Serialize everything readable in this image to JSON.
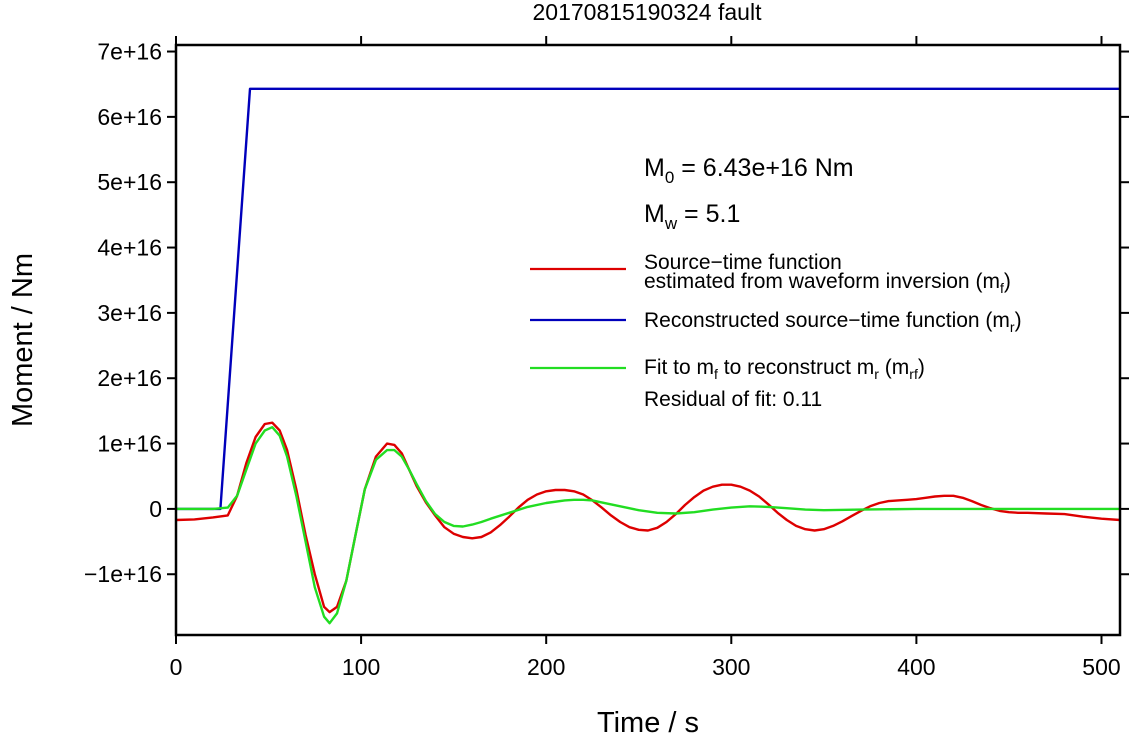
{
  "chart_data": {
    "type": "line",
    "title": "20170815190324 fault",
    "xlabel": "Time / s",
    "ylabel": "Moment / Nm",
    "xlim": [
      0,
      510
    ],
    "ylim": [
      -1.93e+16,
      7.1e+16
    ],
    "x_ticks": [
      0,
      100,
      200,
      300,
      400,
      500
    ],
    "x_tick_labels": [
      "0",
      "100",
      "200",
      "300",
      "400",
      "500"
    ],
    "y_ticks": [
      -1e+16,
      0,
      1e+16,
      2e+16,
      3e+16,
      4e+16,
      5e+16,
      6e+16,
      7e+16
    ],
    "y_tick_labels": [
      "−1e+16",
      "0",
      "1e+16",
      "2e+16",
      "3e+16",
      "4e+16",
      "5e+16",
      "6e+16",
      "7e+16"
    ],
    "grid": false,
    "legend_position": "right",
    "annotations": {
      "m0_prefix": "M",
      "m0_sub": "0",
      "m0_rest": " = 6.43e+16 Nm",
      "mw_prefix": "M",
      "mw_sub": "w",
      "mw_rest": " = 5.1",
      "residual": "Residual of fit: 0.11"
    },
    "legend": [
      {
        "color": "#dd0000",
        "line1": "Source−time function",
        "line2_main": "estimated from waveform inversion (m",
        "line2_sub": "f",
        "line2_end": ")"
      },
      {
        "color": "#0000bb",
        "line1_main": "Reconstructed source−time function (m",
        "line1_sub": "r",
        "line1_end": ")"
      },
      {
        "color": "#22dd22",
        "p1": "Fit to m",
        "s1": "f",
        "p2": " to reconstruct m",
        "s2": "r",
        "p3": " (m",
        "s3": "rf",
        "p4": ")"
      }
    ],
    "series": [
      {
        "color": "#0000bb",
        "x": [
          0,
          24,
          40,
          510
        ],
        "y": [
          0,
          0,
          6.43e+16,
          6.43e+16
        ]
      },
      {
        "color": "#dd0000",
        "x": [
          0,
          10,
          20,
          28,
          33,
          38,
          43,
          48,
          52,
          56,
          60,
          65,
          70,
          75,
          80,
          83,
          87,
          92,
          97,
          102,
          108,
          114,
          118,
          122,
          126,
          130,
          135,
          140,
          145,
          150,
          155,
          160,
          165,
          170,
          175,
          180,
          185,
          190,
          195,
          200,
          205,
          210,
          215,
          220,
          225,
          230,
          235,
          240,
          245,
          250,
          255,
          260,
          265,
          270,
          275,
          280,
          285,
          290,
          295,
          300,
          305,
          310,
          315,
          320,
          325,
          330,
          335,
          340,
          345,
          350,
          355,
          360,
          365,
          370,
          375,
          380,
          385,
          390,
          395,
          400,
          405,
          410,
          415,
          420,
          425,
          430,
          435,
          440,
          445,
          450,
          455,
          460,
          470,
          480,
          490,
          500,
          510
        ],
        "y": [
          -1700000000000000.0,
          -1600000000000000.0,
          -1300000000000000.0,
          -1000000000000000.0,
          2000000000000000.0,
          7000000000000000.0,
          1.1e+16,
          1.3e+16,
          1.32e+16,
          1.2e+16,
          9000000000000000.0,
          3000000000000000.0,
          -4000000000000000.0,
          -1e+16,
          -1.5e+16,
          -1.58e+16,
          -1.5e+16,
          -1.1e+16,
          -4000000000000000.0,
          3000000000000000.0,
          8000000000000000.0,
          1e+16,
          9800000000000000.0,
          8500000000000000.0,
          6000000000000000.0,
          3500000000000000.0,
          1000000000000000.0,
          -1000000000000000.0,
          -2800000000000000.0,
          -3800000000000000.0,
          -4300000000000000.0,
          -4500000000000000.0,
          -4300000000000000.0,
          -3600000000000000.0,
          -2500000000000000.0,
          -1200000000000000.0,
          200000000000000.0,
          1400000000000000.0,
          2200000000000000.0,
          2700000000000000.0,
          2900000000000000.0,
          2900000000000000.0,
          2700000000000000.0,
          2200000000000000.0,
          1300000000000000.0,
          200000000000000.0,
          -1000000000000000.0,
          -2000000000000000.0,
          -2800000000000000.0,
          -3200000000000000.0,
          -3300000000000000.0,
          -2900000000000000.0,
          -2000000000000000.0,
          -800000000000000.0,
          600000000000000.0,
          1800000000000000.0,
          2800000000000000.0,
          3400000000000000.0,
          3700000000000000.0,
          3700000000000000.0,
          3400000000000000.0,
          2800000000000000.0,
          1900000000000000.0,
          700000000000000.0,
          -600000000000000.0,
          -1700000000000000.0,
          -2600000000000000.0,
          -3100000000000000.0,
          -3300000000000000.0,
          -3100000000000000.0,
          -2600000000000000.0,
          -1900000000000000.0,
          -1100000000000000.0,
          -300000000000000.0,
          400000000000000.0,
          900000000000000.0,
          1200000000000000.0,
          1300000000000000.0,
          1400000000000000.0,
          1500000000000000.0,
          1700000000000000.0,
          1900000000000000.0,
          2000000000000000.0,
          2000000000000000.0,
          1700000000000000.0,
          1200000000000000.0,
          600000000000000.0,
          100000000000000.0,
          -300000000000000.0,
          -500000000000000.0,
          -600000000000000.0,
          -600000000000000.0,
          -700000000000000.0,
          -800000000000000.0,
          -1200000000000000.0,
          -1500000000000000.0,
          -1700000000000000.0
        ]
      },
      {
        "color": "#22dd22",
        "x": [
          0,
          20,
          28,
          33,
          38,
          43,
          48,
          52,
          56,
          60,
          65,
          70,
          75,
          80,
          83,
          87,
          92,
          97,
          102,
          108,
          114,
          118,
          122,
          126,
          130,
          135,
          140,
          145,
          150,
          155,
          160,
          165,
          170,
          180,
          190,
          200,
          210,
          215,
          220,
          225,
          230,
          240,
          250,
          260,
          270,
          280,
          290,
          300,
          310,
          320,
          330,
          340,
          350,
          370,
          400,
          450,
          510
        ],
        "y": [
          0,
          0,
          200000000000000.0,
          2000000000000000.0,
          6000000000000000.0,
          1e+16,
          1.2e+16,
          1.25e+16,
          1.12e+16,
          8000000000000000.0,
          2000000000000000.0,
          -5000000000000000.0,
          -1.2e+16,
          -1.65e+16,
          -1.75e+16,
          -1.6e+16,
          -1.1e+16,
          -4000000000000000.0,
          3000000000000000.0,
          7500000000000000.0,
          9000000000000000.0,
          9000000000000000.0,
          8000000000000000.0,
          6000000000000000.0,
          3800000000000000.0,
          1200000000000000.0,
          -800000000000000.0,
          -2000000000000000.0,
          -2600000000000000.0,
          -2700000000000000.0,
          -2400000000000000.0,
          -2000000000000000.0,
          -1500000000000000.0,
          -600000000000000.0,
          300000000000000.0,
          900000000000000.0,
          1300000000000000.0,
          1400000000000000.0,
          1400000000000000.0,
          1300000000000000.0,
          1000000000000000.0,
          400000000000000.0,
          -200000000000000.0,
          -600000000000000.0,
          -700000000000000.0,
          -500000000000000.0,
          -100000000000000.0,
          200000000000000.0,
          400000000000000.0,
          300000000000000.0,
          100000000000000.0,
          -100000000000000.0,
          -200000000000000.0,
          -100000000000000.0,
          0,
          0,
          0
        ]
      }
    ]
  }
}
